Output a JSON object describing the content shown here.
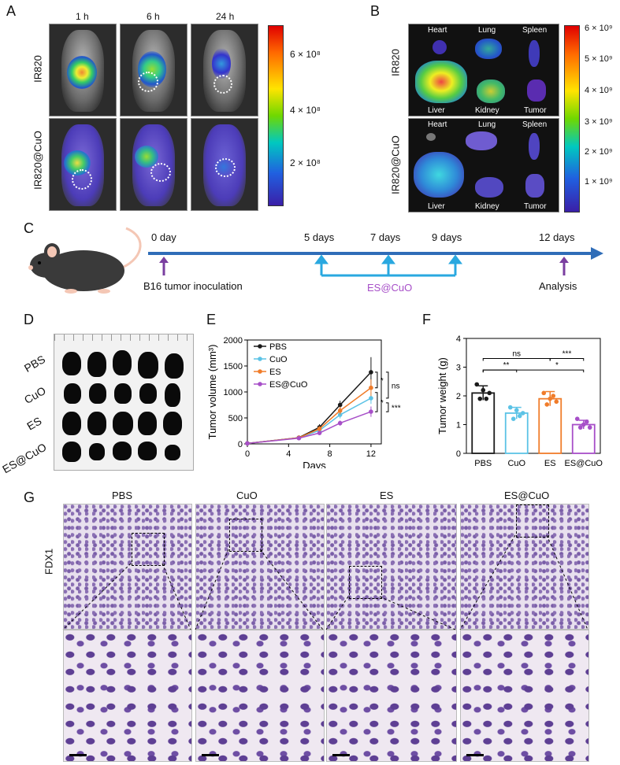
{
  "panels": {
    "A": {
      "letter": "A",
      "times": [
        "1 h",
        "6 h",
        "24 h"
      ],
      "rows": [
        "IR820",
        "IR820@CuO"
      ],
      "colorbar_ticks": [
        "6 × 10⁸",
        "4 × 10⁸",
        "2 × 10⁸"
      ]
    },
    "B": {
      "letter": "B",
      "rows": [
        "IR820",
        "IR820@CuO"
      ],
      "organs": [
        "Heart",
        "Lung",
        "Spleen",
        "Liver",
        "Kidney",
        "Tumor"
      ],
      "colorbar_ticks": [
        "6 × 10⁹",
        "5 × 10⁹",
        "4 × 10⁹",
        "3 × 10⁹",
        "2 × 10⁹",
        "1 × 10⁹"
      ]
    },
    "C": {
      "letter": "C",
      "timepoints": [
        "0 day",
        "5 days",
        "7 days",
        "9 days",
        "12 days"
      ],
      "inoculation": "B16 tumor inoculation",
      "treatment": "ES@CuO",
      "analysis": "Analysis"
    },
    "D": {
      "letter": "D",
      "groups": [
        "PBS",
        "CuO",
        "ES",
        "ES@CuO"
      ]
    },
    "E": {
      "letter": "E"
    },
    "F": {
      "letter": "F"
    },
    "G": {
      "letter": "G",
      "groups": [
        "PBS",
        "CuO",
        "ES",
        "ES@CuO"
      ],
      "stain": "FDX1"
    }
  },
  "chart_data": [
    {
      "type": "line",
      "panel": "E",
      "xlabel": "Days",
      "ylabel": "Tumor volume (mm³)",
      "xlim": [
        0,
        13
      ],
      "ylim": [
        0,
        2000
      ],
      "xticks": [
        0,
        4,
        8,
        12
      ],
      "yticks": [
        0,
        500,
        1000,
        1500,
        2000
      ],
      "x": [
        0,
        5,
        7,
        9,
        12
      ],
      "series": [
        {
          "name": "PBS",
          "color": "#1a1a1a",
          "values": [
            10,
            120,
            320,
            750,
            1380
          ],
          "errors": [
            0,
            15,
            60,
            80,
            290
          ]
        },
        {
          "name": "CuO",
          "color": "#5cc3e6",
          "values": [
            10,
            115,
            260,
            560,
            880
          ],
          "errors": [
            0,
            12,
            45,
            70,
            110
          ]
        },
        {
          "name": "ES",
          "color": "#f07c2a",
          "values": [
            10,
            118,
            290,
            640,
            1080
          ],
          "errors": [
            0,
            12,
            50,
            75,
            160
          ]
        },
        {
          "name": "ES@CuO",
          "color": "#a74fc8",
          "values": [
            10,
            110,
            210,
            400,
            620
          ],
          "errors": [
            0,
            10,
            35,
            50,
            100
          ]
        }
      ],
      "significance": [
        "*",
        "ns",
        "*",
        "***"
      ],
      "legend": "top-left"
    },
    {
      "type": "bar",
      "panel": "F",
      "xlabel": "",
      "ylabel": "Tumor weight (g)",
      "ylim": [
        0,
        4
      ],
      "yticks": [
        0,
        1,
        2,
        3,
        4
      ],
      "categories": [
        "PBS",
        "CuO",
        "ES",
        "ES@CuO"
      ],
      "colors": [
        "#1a1a1a",
        "#5cc3e6",
        "#f07c2a",
        "#a74fc8"
      ],
      "values": [
        2.1,
        1.4,
        1.9,
        1.0
      ],
      "errors": [
        0.25,
        0.2,
        0.25,
        0.15
      ],
      "points": [
        [
          2.4,
          1.9,
          2.2,
          1.9,
          2.1
        ],
        [
          1.6,
          1.2,
          1.5,
          1.3,
          1.4
        ],
        [
          2.1,
          1.7,
          1.9,
          2.0,
          1.8
        ],
        [
          1.2,
          0.9,
          1.0,
          1.1,
          0.9
        ]
      ],
      "significance": [
        {
          "pair": [
            "PBS",
            "ES"
          ],
          "label": "ns"
        },
        {
          "pair": [
            "ES",
            "ES@CuO"
          ],
          "label": "***"
        },
        {
          "pair": [
            "PBS",
            "CuO"
          ],
          "label": "**"
        },
        {
          "pair": [
            "PBS",
            "ES@CuO"
          ],
          "label": "*"
        }
      ]
    }
  ]
}
